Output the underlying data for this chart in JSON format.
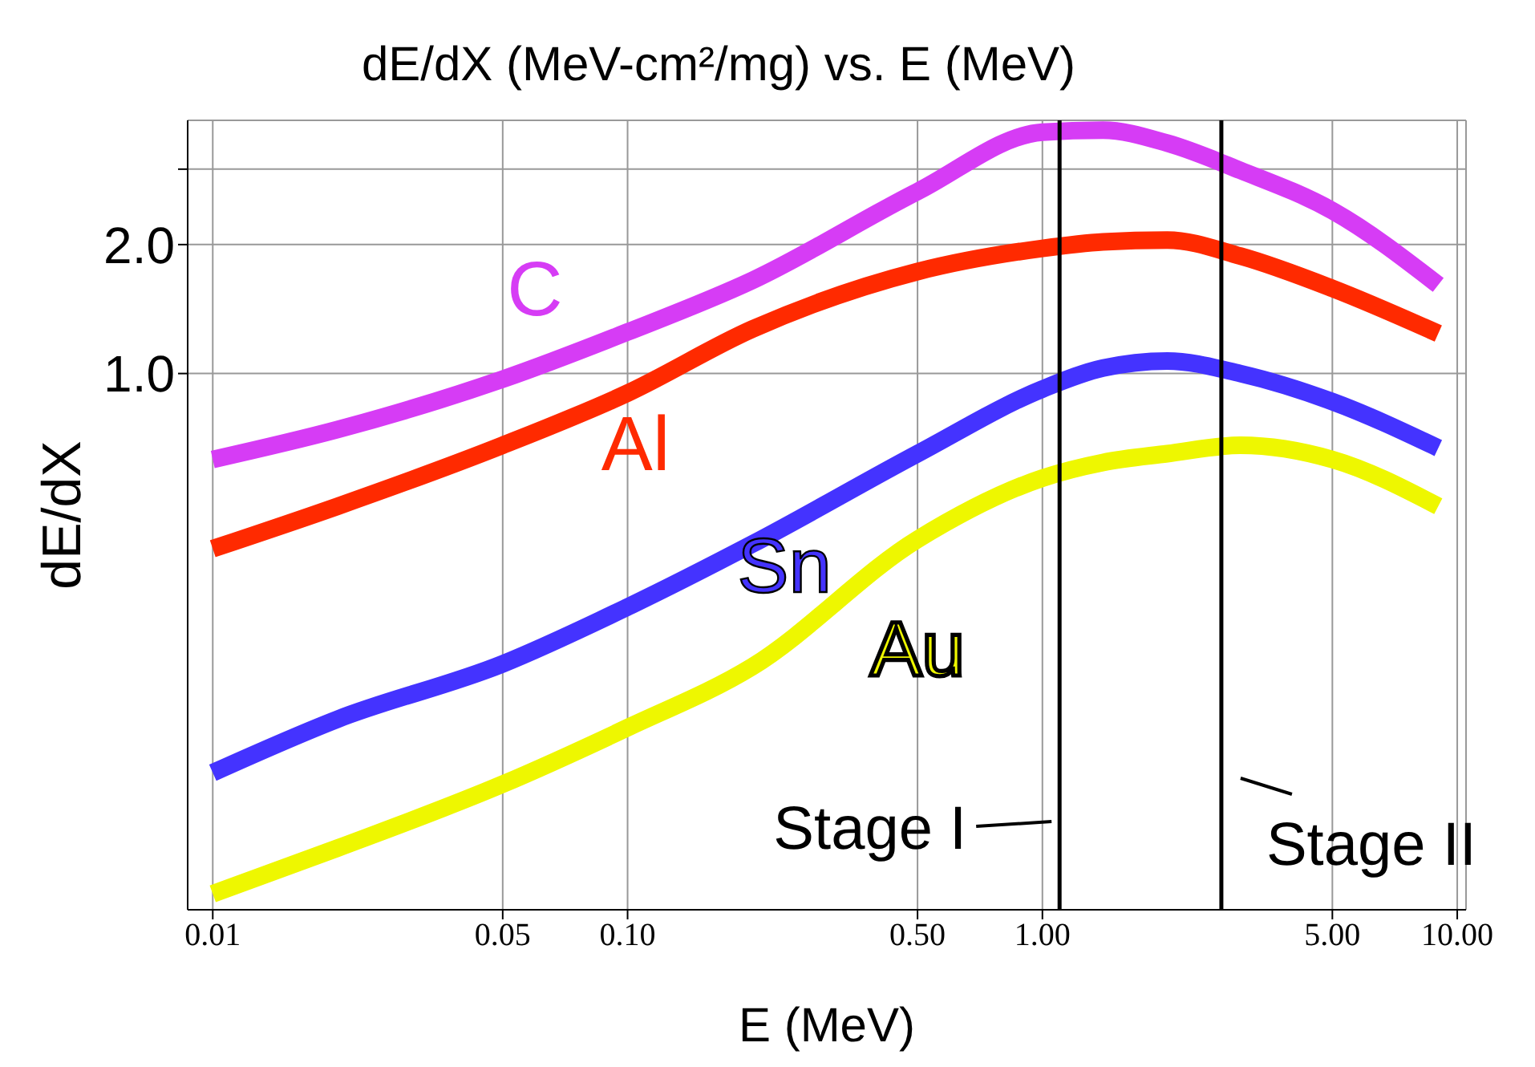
{
  "chart_data": {
    "type": "line",
    "title": "dE/dX (MeV-cm²/mg) vs. E (MeV)",
    "xlabel": "E (MeV)",
    "ylabel": "dE/dX",
    "x": [
      0.01,
      0.02,
      0.05,
      0.1,
      0.2,
      0.5,
      1,
      1.4,
      2,
      3,
      5,
      9
    ],
    "series": [
      {
        "name": "C",
        "color": "#d63cf5",
        "values": [
          0.63,
          0.74,
          0.97,
          1.25,
          1.65,
          2.66,
          3.66,
          3.7,
          3.45,
          2.98,
          2.4,
          1.61
        ]
      },
      {
        "name": "Al",
        "color": "#ff2a00",
        "values": [
          0.39,
          0.49,
          0.68,
          0.9,
          1.27,
          1.73,
          1.96,
          2.03,
          2.05,
          1.88,
          1.58,
          1.24
        ]
      },
      {
        "name": "Sn",
        "color": "#4433ff",
        "values": [
          0.117,
          0.156,
          0.21,
          0.285,
          0.4,
          0.65,
          0.92,
          1.03,
          1.07,
          1.0,
          0.86,
          0.67
        ]
      },
      {
        "name": "Au",
        "color": "#eef700",
        "values": [
          0.061,
          0.078,
          0.11,
          0.149,
          0.207,
          0.41,
          0.57,
          0.62,
          0.65,
          0.68,
          0.63,
          0.49
        ]
      }
    ],
    "log": "xy",
    "xlim": [
      0.0087,
      10.5
    ],
    "ylim": [
      0.056,
      3.9
    ],
    "xticks": [
      0.01,
      {
        "value": 0.05,
        "label": "0.05"
      },
      {
        "value": 0.1,
        "label": "0.10"
      },
      {
        "value": 0.5,
        "label": "0.50"
      },
      {
        "value": 1,
        "label": "1.00"
      },
      {
        "value": 5,
        "label": "5.00"
      },
      {
        "value": 10,
        "label": "10.00"
      }
    ],
    "yticks": [
      {
        "value": 1,
        "label": "1.0"
      },
      {
        "value": 2,
        "label": "2.0"
      },
      {
        "value": 3,
        "label": null
      }
    ],
    "ref_lines": [
      {
        "axis": "x",
        "value": 1.1,
        "label": "Stage I",
        "color": "#000000"
      },
      {
        "axis": "x",
        "value": 2.7,
        "label": "Stage II",
        "color": "#000000"
      }
    ],
    "grid": true,
    "legend": false,
    "marker": "none",
    "line_style": "solid"
  }
}
